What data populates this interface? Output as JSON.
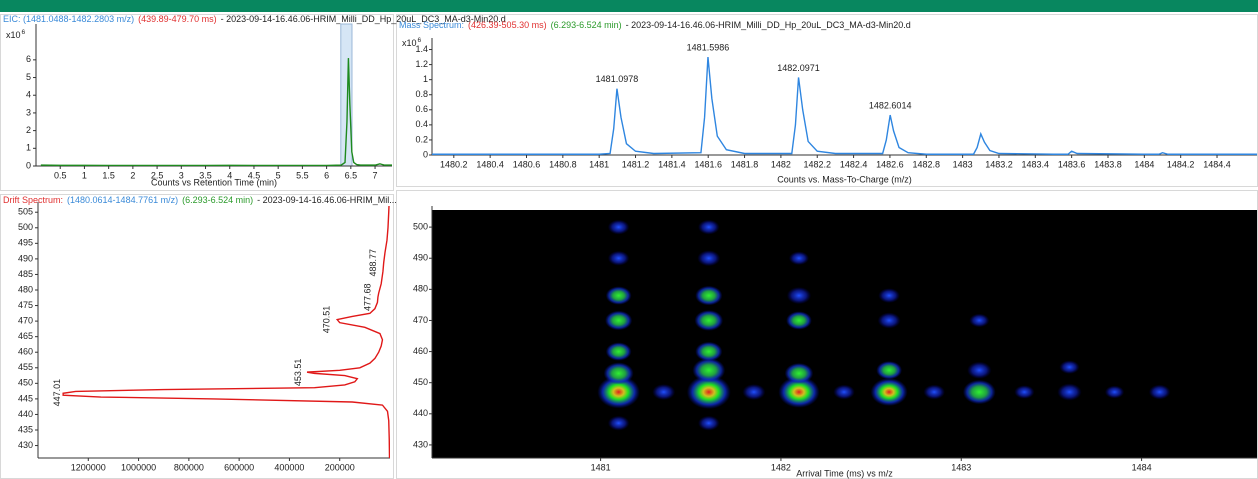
{
  "chart_data": [
    {
      "type": "line",
      "title_parts": [
        {
          "text": "EIC: (1481.0488-1482.2803 m/z)",
          "color": "#3a8ad8"
        },
        {
          "text": "(439.89-479.70 ms)",
          "color": "#e03030"
        },
        {
          "text": "- 2023-09-14-16.46.06-HRIM_Milli_DD_Hp_20uL_DC3_MA-d3-Min20.d",
          "color": "#222222"
        }
      ],
      "y_multiplier": {
        "base": "x10",
        "exponent": "6"
      },
      "x_label": "Counts vs Retention Time (min)",
      "xlim": [
        0,
        7.35
      ],
      "ylim": [
        0,
        7.8
      ],
      "xticks": [
        0.5,
        1,
        1.5,
        2,
        2.5,
        3,
        3.5,
        4,
        4.5,
        5,
        5.5,
        6,
        6.5,
        7
      ],
      "yticks": [
        0,
        1,
        2,
        3,
        4,
        5,
        6
      ],
      "highlight": [
        6.293,
        6.524
      ],
      "highlight_color": "#d6e6f5",
      "series": [
        {
          "color": "#1e8a1e",
          "x": [
            0.1,
            0.5,
            1,
            1.5,
            2,
            2.5,
            3,
            3.5,
            4,
            4.5,
            5,
            5.5,
            6,
            6.3,
            6.38,
            6.42,
            6.45,
            6.48,
            6.52,
            6.56,
            6.62,
            6.7,
            7,
            7.1,
            7.2,
            7.35
          ],
          "values": [
            0.05,
            0.04,
            0.04,
            0.03,
            0.03,
            0.03,
            0.03,
            0.03,
            0.04,
            0.03,
            0.03,
            0.03,
            0.03,
            0.05,
            0.2,
            2.5,
            6.1,
            3.5,
            0.8,
            0.2,
            0.08,
            0.05,
            0.05,
            0.12,
            0.05,
            0.05
          ]
        }
      ]
    },
    {
      "type": "line",
      "title_parts": [
        {
          "text": "Mass Spectrum:",
          "color": "#3a8ad8"
        },
        {
          "text": "(426.39-505.30 ms)",
          "color": "#e03030"
        },
        {
          "text": "(6.293-6.524 min)",
          "color": "#2a9a2a"
        },
        {
          "text": "- 2023-09-14-16.46.06-HRIM_Milli_DD_Hp_20uL_DC3_MA-d3-Min20.d",
          "color": "#222222"
        }
      ],
      "y_multiplier": {
        "base": "x10",
        "exponent": "6"
      },
      "x_label": "Counts vs. Mass-To-Charge (m/z)",
      "xlim": [
        1480.08,
        1484.62
      ],
      "ylim": [
        0,
        1.5
      ],
      "xticks": [
        1480.2,
        1480.4,
        1480.6,
        1480.8,
        1481,
        1481.2,
        1481.4,
        1481.6,
        1481.8,
        1482,
        1482.2,
        1482.4,
        1482.6,
        1482.8,
        1483,
        1483.2,
        1483.4,
        1483.6,
        1483.8,
        1484,
        1484.2,
        1484.4
      ],
      "yticks": [
        0,
        0.2,
        0.4,
        0.6,
        0.8,
        1,
        1.2,
        1.4
      ],
      "peak_labels": [
        1481.0978,
        1481.5986,
        1482.0971,
        1482.6014
      ],
      "series": [
        {
          "color": "#2f86e0",
          "x": [
            1480.08,
            1480.5,
            1481.0,
            1481.06,
            1481.08,
            1481.0978,
            1481.12,
            1481.15,
            1481.2,
            1481.3,
            1481.56,
            1481.58,
            1481.5986,
            1481.62,
            1481.65,
            1481.7,
            1481.8,
            1482.06,
            1482.08,
            1482.0971,
            1482.12,
            1482.15,
            1482.2,
            1482.3,
            1482.56,
            1482.58,
            1482.6014,
            1482.62,
            1482.65,
            1482.7,
            1482.8,
            1483.06,
            1483.08,
            1483.1,
            1483.12,
            1483.15,
            1483.2,
            1483.5,
            1483.58,
            1483.6,
            1483.63,
            1484.0,
            1484.08,
            1484.1,
            1484.13,
            1484.62
          ],
          "values": [
            0.01,
            0.01,
            0.01,
            0.02,
            0.35,
            0.88,
            0.5,
            0.15,
            0.05,
            0.02,
            0.03,
            0.5,
            1.3,
            0.75,
            0.25,
            0.07,
            0.02,
            0.02,
            0.4,
            1.03,
            0.6,
            0.18,
            0.05,
            0.02,
            0.02,
            0.2,
            0.53,
            0.32,
            0.1,
            0.03,
            0.01,
            0.01,
            0.1,
            0.28,
            0.17,
            0.06,
            0.02,
            0.01,
            0.01,
            0.05,
            0.02,
            0.01,
            0.01,
            0.03,
            0.01,
            0.01
          ]
        }
      ]
    },
    {
      "type": "line",
      "orientation": "horizontal",
      "title_parts": [
        {
          "text": "Drift Spectrum:",
          "color": "#e03030"
        },
        {
          "text": "(1480.0614-1484.7761 m/z)",
          "color": "#3a8ad8"
        },
        {
          "text": "(6.293-6.524 min)",
          "color": "#2a9a2a"
        },
        {
          "text": "- 2023-09-14-16.46.06-HRIM_Mil...",
          "color": "#222222"
        }
      ],
      "xlim": [
        1400000,
        0
      ],
      "ylim": [
        426,
        507
      ],
      "xticks": [
        1200000,
        1000000,
        800000,
        600000,
        400000,
        200000
      ],
      "yticks": [
        430,
        435,
        440,
        445,
        450,
        455,
        460,
        465,
        470,
        475,
        480,
        485,
        490,
        495,
        500,
        505
      ],
      "peak_labels": [
        447.01,
        453.51,
        470.51,
        477.68,
        488.77
      ],
      "series": [
        {
          "color": "#e01818",
          "y": [
            426,
            432,
            438,
            441,
            443,
            444,
            445,
            445.6,
            446.2,
            446.8,
            447.4,
            448,
            448.6,
            449.5,
            450.5,
            451.5,
            452.5,
            453.2,
            453.6,
            454.2,
            455,
            456.5,
            458,
            460,
            462,
            464,
            466,
            468,
            469.5,
            470.5,
            471.5,
            472.5,
            474,
            476,
            477.7,
            479,
            482,
            486,
            488.8,
            492,
            496,
            500,
            505,
            507
          ],
          "values": [
            2000,
            3000,
            5000,
            10000,
            30000,
            150000,
            700000,
            1150000,
            1300000,
            1300000,
            1250000,
            900000,
            300000,
            180000,
            140000,
            130000,
            180000,
            300000,
            330000,
            200000,
            120000,
            80000,
            60000,
            45000,
            35000,
            30000,
            40000,
            100000,
            200000,
            210000,
            150000,
            80000,
            60000,
            50000,
            48000,
            45000,
            35000,
            28000,
            25000,
            20000,
            12000,
            8000,
            5000,
            4000
          ]
        }
      ]
    },
    {
      "type": "heatmap",
      "x_label": "Arrival Time (ms) vs m/z",
      "xlim": [
        1480.065,
        1484.64
      ],
      "ylim": [
        425.8,
        505.5
      ],
      "xticks": [
        1481,
        1482,
        1483,
        1484
      ],
      "yticks": [
        430,
        440,
        450,
        460,
        470,
        480,
        490,
        500
      ],
      "background": "#000000",
      "x": [
        1481.1,
        1481.1,
        1481.1,
        1481.1,
        1481.1,
        1481.1,
        1481.1,
        1481.1,
        1481.6,
        1481.6,
        1481.6,
        1481.6,
        1481.6,
        1481.6,
        1481.6,
        1481.6,
        1482.1,
        1482.1,
        1482.1,
        1482.1,
        1482.1,
        1482.6,
        1482.6,
        1482.6,
        1482.6,
        1483.1,
        1483.1,
        1483.1,
        1483.6,
        1483.6,
        1484.1,
        1481.35,
        1481.85,
        1482.35,
        1482.85,
        1483.35,
        1483.85
      ],
      "y": [
        447,
        453,
        460,
        470,
        478,
        490,
        500,
        437,
        447,
        454,
        460,
        470,
        478,
        490,
        500,
        437,
        447,
        453,
        470,
        478,
        490,
        447,
        454,
        470,
        478,
        447,
        454,
        470,
        447,
        455,
        447,
        447,
        447,
        447,
        447,
        447,
        447
      ],
      "values": [
        0.95,
        0.5,
        0.35,
        0.4,
        0.35,
        0.2,
        0.2,
        0.2,
        1.0,
        0.6,
        0.4,
        0.45,
        0.4,
        0.25,
        0.2,
        0.2,
        0.9,
        0.45,
        0.35,
        0.3,
        0.15,
        0.75,
        0.35,
        0.25,
        0.2,
        0.6,
        0.3,
        0.15,
        0.3,
        0.15,
        0.2,
        0.25,
        0.25,
        0.2,
        0.2,
        0.15,
        0.12
      ]
    }
  ]
}
